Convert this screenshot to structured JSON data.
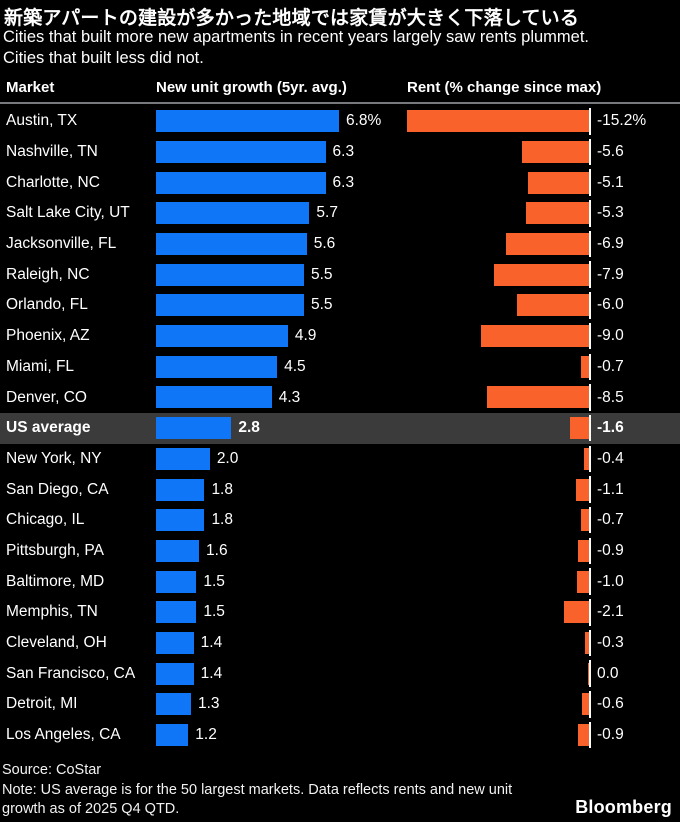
{
  "title": "新築アパートの建設が多かった地域では家賃が大きく下落している",
  "subtitle_line1": "Cities that built more new apartments in recent years largely saw rents plummet.",
  "subtitle_line2": "Cities that built less did not.",
  "columns": {
    "market": "Market",
    "growth": "New unit growth (5yr. avg.)",
    "rent": "Rent (% change since max)"
  },
  "colors": {
    "background": "#000000",
    "growth_bar": "#0E76F7",
    "rent_bar": "#F9622B",
    "highlight_row_bg": "#3B3B3B",
    "axis_line": "#FFFFFF",
    "divider": "#77797C",
    "text": "#FFFFFF"
  },
  "chart_data": {
    "type": "bar",
    "orientation": "horizontal",
    "title": "新築アパートの建設が多かった地域では家賃が大きく下落している",
    "subtitle": "Cities that built more new apartments in recent years largely saw rents plummet. Cities that built less did not.",
    "series_names": [
      "New unit growth (5yr. avg.)",
      "Rent (% change since max)"
    ],
    "unit": "%",
    "growth_axis_max": 6.8,
    "rent_axis_min": -15.2,
    "rows": [
      {
        "market": "Austin, TX",
        "growth": 6.8,
        "growth_label": "6.8%",
        "rent": -15.2,
        "rent_label": "-15.2%",
        "highlight": false
      },
      {
        "market": "Nashville, TN",
        "growth": 6.3,
        "growth_label": "6.3",
        "rent": -5.6,
        "rent_label": "-5.6",
        "highlight": false
      },
      {
        "market": "Charlotte, NC",
        "growth": 6.3,
        "growth_label": "6.3",
        "rent": -5.1,
        "rent_label": "-5.1",
        "highlight": false
      },
      {
        "market": "Salt Lake City, UT",
        "growth": 5.7,
        "growth_label": "5.7",
        "rent": -5.3,
        "rent_label": "-5.3",
        "highlight": false
      },
      {
        "market": "Jacksonville, FL",
        "growth": 5.6,
        "growth_label": "5.6",
        "rent": -6.9,
        "rent_label": "-6.9",
        "highlight": false
      },
      {
        "market": "Raleigh, NC",
        "growth": 5.5,
        "growth_label": "5.5",
        "rent": -7.9,
        "rent_label": "-7.9",
        "highlight": false
      },
      {
        "market": "Orlando, FL",
        "growth": 5.5,
        "growth_label": "5.5",
        "rent": -6.0,
        "rent_label": "-6.0",
        "highlight": false
      },
      {
        "market": "Phoenix, AZ",
        "growth": 4.9,
        "growth_label": "4.9",
        "rent": -9.0,
        "rent_label": "-9.0",
        "highlight": false
      },
      {
        "market": "Miami, FL",
        "growth": 4.5,
        "growth_label": "4.5",
        "rent": -0.7,
        "rent_label": "-0.7",
        "highlight": false
      },
      {
        "market": "Denver, CO",
        "growth": 4.3,
        "growth_label": "4.3",
        "rent": -8.5,
        "rent_label": "-8.5",
        "highlight": false
      },
      {
        "market": "US average",
        "growth": 2.8,
        "growth_label": "2.8",
        "rent": -1.6,
        "rent_label": "-1.6",
        "highlight": true
      },
      {
        "market": "New York, NY",
        "growth": 2.0,
        "growth_label": "2.0",
        "rent": -0.4,
        "rent_label": "-0.4",
        "highlight": false
      },
      {
        "market": "San Diego, CA",
        "growth": 1.8,
        "growth_label": "1.8",
        "rent": -1.1,
        "rent_label": "-1.1",
        "highlight": false
      },
      {
        "market": "Chicago, IL",
        "growth": 1.8,
        "growth_label": "1.8",
        "rent": -0.7,
        "rent_label": "-0.7",
        "highlight": false
      },
      {
        "market": "Pittsburgh, PA",
        "growth": 1.6,
        "growth_label": "1.6",
        "rent": -0.9,
        "rent_label": "-0.9",
        "highlight": false
      },
      {
        "market": "Baltimore, MD",
        "growth": 1.5,
        "growth_label": "1.5",
        "rent": -1.0,
        "rent_label": "-1.0",
        "highlight": false
      },
      {
        "market": "Memphis, TN",
        "growth": 1.5,
        "growth_label": "1.5",
        "rent": -2.1,
        "rent_label": "-2.1",
        "highlight": false
      },
      {
        "market": "Cleveland, OH",
        "growth": 1.4,
        "growth_label": "1.4",
        "rent": -0.3,
        "rent_label": "-0.3",
        "highlight": false
      },
      {
        "market": "San Francisco, CA",
        "growth": 1.4,
        "growth_label": "1.4",
        "rent": 0.0,
        "rent_label": "0.0",
        "highlight": false
      },
      {
        "market": "Detroit, MI",
        "growth": 1.3,
        "growth_label": "1.3",
        "rent": -0.6,
        "rent_label": "-0.6",
        "highlight": false
      },
      {
        "market": "Los Angeles, CA",
        "growth": 1.2,
        "growth_label": "1.2",
        "rent": -0.9,
        "rent_label": "-0.9",
        "highlight": false
      }
    ]
  },
  "footer": {
    "source": "Source: CoStar",
    "note": "Note: US average is for the 50 largest markets. Data reflects rents and new unit growth as of 2025 Q4 QTD.",
    "brand": "Bloomberg"
  }
}
